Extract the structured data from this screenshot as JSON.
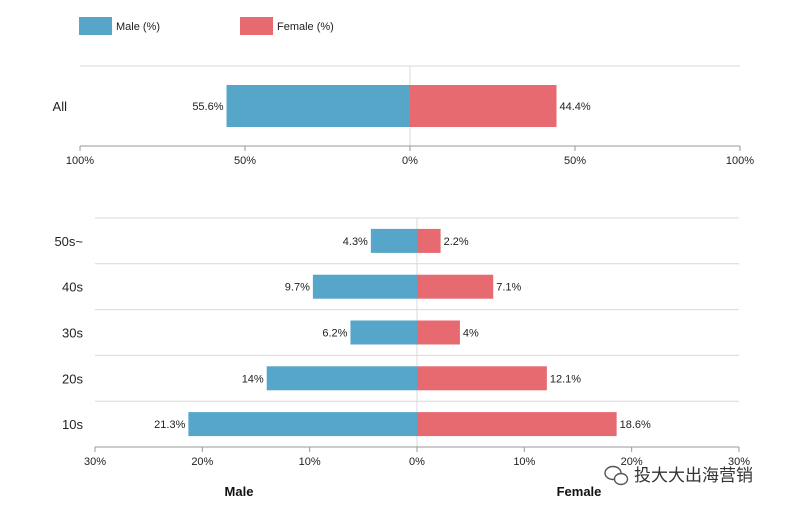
{
  "legend": {
    "male_label": "Male (%)",
    "female_label": "Female (%)"
  },
  "colors": {
    "male": "#56a6c9",
    "female": "#e66a70",
    "grid": "#d8d8d8",
    "axis": "#999999"
  },
  "chart_data": [
    {
      "type": "bar",
      "orientation": "horizontal-diverging",
      "categories": [
        "All"
      ],
      "series": [
        {
          "name": "Male (%)",
          "values": [
            55.6
          ],
          "labels": [
            "55.6%"
          ]
        },
        {
          "name": "Female (%)",
          "values": [
            44.4
          ],
          "labels": [
            "44.4%"
          ]
        }
      ],
      "xlim": [
        -100,
        100
      ],
      "tick_values": [
        -100,
        -50,
        0,
        50,
        100
      ],
      "tick_labels": [
        "100%",
        "50%",
        "0%",
        "50%",
        "100%"
      ],
      "grid": true
    },
    {
      "type": "bar",
      "orientation": "horizontal-diverging",
      "categories": [
        "50s~",
        "40s",
        "30s",
        "20s",
        "10s"
      ],
      "series": [
        {
          "name": "Male (%)",
          "values": [
            4.3,
            9.7,
            6.2,
            14,
            21.3
          ],
          "labels": [
            "4.3%",
            "9.7%",
            "6.2%",
            "14%",
            "21.3%"
          ]
        },
        {
          "name": "Female (%)",
          "values": [
            2.2,
            7.1,
            4,
            12.1,
            18.6
          ],
          "labels": [
            "2.2%",
            "7.1%",
            "4%",
            "12.1%",
            "18.6%"
          ]
        }
      ],
      "xlim": [
        -30,
        30
      ],
      "tick_values": [
        -30,
        -20,
        -10,
        0,
        10,
        20,
        30
      ],
      "tick_labels": [
        "30%",
        "20%",
        "10%",
        "0%",
        "10%",
        "20%",
        "30%"
      ],
      "xlabel_left": "Male",
      "xlabel_right": "Female",
      "grid": true
    }
  ],
  "watermark": {
    "text": "投大大出海营销",
    "icon": "wechat-icon"
  }
}
